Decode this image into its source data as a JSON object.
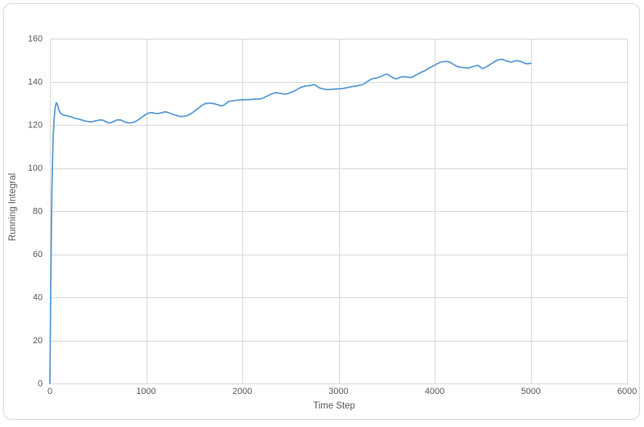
{
  "window": {
    "background_color": "#ffffff",
    "border_color": "#d7d7d7"
  },
  "chart_data": {
    "type": "line",
    "title": "",
    "xlabel": "Time Step",
    "ylabel": "Running Integral",
    "xlim": [
      0,
      6000
    ],
    "ylim": [
      0,
      160
    ],
    "x_ticks": [
      0,
      1000,
      2000,
      3000,
      4000,
      5000,
      6000
    ],
    "y_ticks": [
      0,
      20,
      40,
      60,
      80,
      100,
      120,
      140,
      160
    ],
    "grid": true,
    "legend_position": "none",
    "line_color": "#5b9bd5",
    "gridline_color": "#d9d9d9",
    "axis_line_color": "#d9d9d9",
    "tick_label_color": "#595959",
    "series": [
      {
        "x": [
          0,
          10,
          20,
          30,
          40,
          50,
          60,
          70,
          80,
          90,
          100,
          120,
          150,
          180,
          220,
          260,
          300,
          350,
          400,
          430,
          470,
          500,
          540,
          580,
          620,
          660,
          700,
          740,
          780,
          830,
          880,
          920,
          970,
          1010,
          1060,
          1110,
          1160,
          1200,
          1250,
          1300,
          1360,
          1420,
          1470,
          1530,
          1600,
          1650,
          1700,
          1760,
          1800,
          1860,
          1920,
          1980,
          2050,
          2120,
          2200,
          2250,
          2300,
          2350,
          2400,
          2450,
          2500,
          2550,
          2600,
          2650,
          2700,
          2750,
          2800,
          2850,
          2900,
          2950,
          3000,
          3050,
          3100,
          3150,
          3200,
          3250,
          3300,
          3350,
          3400,
          3450,
          3500,
          3550,
          3600,
          3650,
          3700,
          3750,
          3800,
          3850,
          3900,
          3950,
          4000,
          4050,
          4100,
          4150,
          4200,
          4250,
          4300,
          4350,
          4400,
          4450,
          4500,
          4550,
          4600,
          4650,
          4700,
          4750,
          4800,
          4850,
          4900,
          4950,
          5000
        ],
        "y": [
          0,
          50,
          88,
          109,
          120,
          126,
          129.2,
          130.2,
          129,
          127.5,
          126.2,
          125,
          124.5,
          124.2,
          123.7,
          123.1,
          122.7,
          122,
          121.5,
          121.4,
          121.8,
          122.1,
          122.3,
          121.5,
          120.9,
          121.5,
          122.3,
          122.2,
          121.3,
          120.9,
          121.4,
          122.4,
          124,
          125.2,
          125.7,
          125.2,
          125.6,
          126,
          125.4,
          124.6,
          123.9,
          124.2,
          125.3,
          127.3,
          129.6,
          130,
          129.9,
          129.1,
          129,
          130.8,
          131.3,
          131.6,
          131.7,
          131.9,
          132.2,
          133.2,
          134.3,
          134.9,
          134.6,
          134.3,
          135,
          135.9,
          137.2,
          138,
          138.2,
          138.6,
          137.2,
          136.6,
          136.4,
          136.6,
          136.7,
          136.9,
          137.4,
          137.8,
          138.2,
          138.7,
          140.1,
          141.4,
          141.8,
          142.6,
          143.5,
          142.3,
          141.4,
          142.2,
          142.3,
          142,
          143,
          144.2,
          145.2,
          146.6,
          147.7,
          148.9,
          149.4,
          149.2,
          147.9,
          146.9,
          146.6,
          146.4,
          147.1,
          147.5,
          146.2,
          147.3,
          148.7,
          150,
          150.4,
          149.6,
          149.2,
          149.8,
          149.3,
          148.4,
          148.6
        ]
      }
    ]
  }
}
